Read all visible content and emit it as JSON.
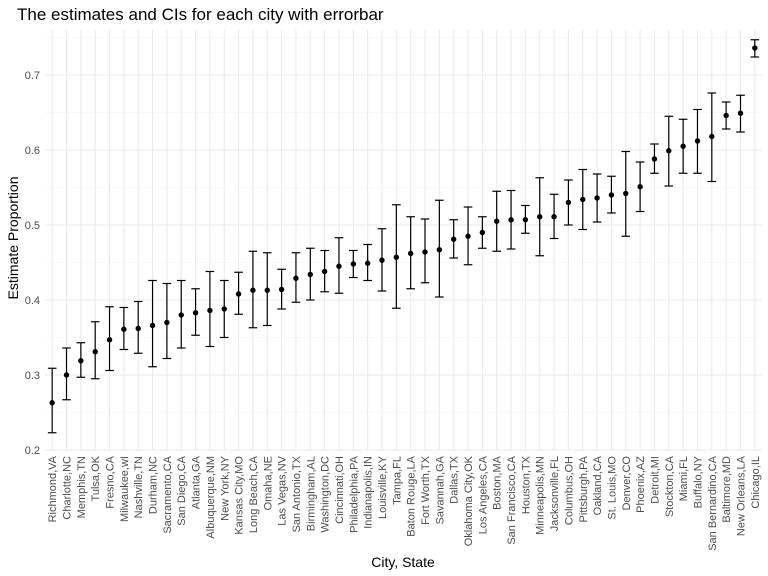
{
  "chart_data": {
    "type": "scatter",
    "title": "The estimates and CIs for each city with errorbar",
    "xlabel": "City, State",
    "ylabel": "Estimate Proportion",
    "ylim": [
      0.2,
      0.76
    ],
    "yticks": [
      "0.2",
      "0.3",
      "0.4",
      "0.5",
      "0.6",
      "0.7"
    ],
    "grid": true,
    "categories": [
      "Richmond,VA",
      "Charlotte,NC",
      "Memphis,TN",
      "Tulsa,OK",
      "Fresno,CA",
      "Milwaukee,wI",
      "Nashville,TN",
      "Durham,NC",
      "Sacramento,CA",
      "San Diego,CA",
      "Atlanta,GA",
      "Albuquerque,NM",
      "New York,NY",
      "Kansas City,MO",
      "Long Beach,CA",
      "Omaha,NE",
      "Las Vegas,NV",
      "San Antonio,TX",
      "Birmingham,AL",
      "Washington,DC",
      "Cincinnati,OH",
      "Philadelphia,PA",
      "Indianapolis,IN",
      "Louisville,KY",
      "Tampa,FL",
      "Baton Rouge,LA",
      "Fort Worth,TX",
      "Savannah,GA",
      "Dallas,TX",
      "Oklahoma City,OK",
      "Los Angeles,CA",
      "Boston,MA",
      "San Francisco,CA",
      "Houston,TX",
      "Minneapolis,MN",
      "Jacksonville,FL",
      "Columbus,OH",
      "Pittsburgh,PA",
      "Oakland,CA",
      "St. Louis,MO",
      "Denver,CO",
      "Phoenix,AZ",
      "Detroit,MI",
      "Stockton,CA",
      "Miami,FL",
      "Buffalo,NY",
      "San Bernardino,CA",
      "Baltimore,MD",
      "New Orleans,LA",
      "Chicago,IL"
    ],
    "series": [
      {
        "estimate": [
          0.263,
          0.3,
          0.319,
          0.331,
          0.347,
          0.361,
          0.362,
          0.366,
          0.37,
          0.38,
          0.383,
          0.386,
          0.388,
          0.408,
          0.413,
          0.413,
          0.414,
          0.429,
          0.434,
          0.438,
          0.445,
          0.448,
          0.449,
          0.453,
          0.457,
          0.462,
          0.464,
          0.467,
          0.481,
          0.485,
          0.49,
          0.505,
          0.507,
          0.507,
          0.511,
          0.511,
          0.53,
          0.534,
          0.536,
          0.54,
          0.542,
          0.551,
          0.588,
          0.599,
          0.605,
          0.612,
          0.618,
          0.646,
          0.649,
          0.736
        ],
        "lower": [
          0.223,
          0.267,
          0.297,
          0.295,
          0.306,
          0.334,
          0.329,
          0.311,
          0.322,
          0.336,
          0.353,
          0.338,
          0.35,
          0.381,
          0.363,
          0.366,
          0.388,
          0.397,
          0.4,
          0.411,
          0.409,
          0.43,
          0.426,
          0.412,
          0.389,
          0.415,
          0.423,
          0.404,
          0.456,
          0.447,
          0.469,
          0.465,
          0.468,
          0.489,
          0.459,
          0.482,
          0.5,
          0.494,
          0.504,
          0.516,
          0.485,
          0.518,
          0.569,
          0.552,
          0.569,
          0.569,
          0.558,
          0.628,
          0.624,
          0.724
        ],
        "upper": [
          0.309,
          0.336,
          0.343,
          0.371,
          0.391,
          0.39,
          0.398,
          0.426,
          0.422,
          0.426,
          0.415,
          0.438,
          0.426,
          0.437,
          0.465,
          0.463,
          0.441,
          0.463,
          0.469,
          0.466,
          0.483,
          0.466,
          0.474,
          0.495,
          0.527,
          0.511,
          0.508,
          0.533,
          0.507,
          0.524,
          0.511,
          0.545,
          0.546,
          0.526,
          0.563,
          0.541,
          0.56,
          0.574,
          0.568,
          0.565,
          0.598,
          0.584,
          0.608,
          0.645,
          0.641,
          0.654,
          0.676,
          0.664,
          0.673,
          0.747
        ]
      }
    ]
  }
}
